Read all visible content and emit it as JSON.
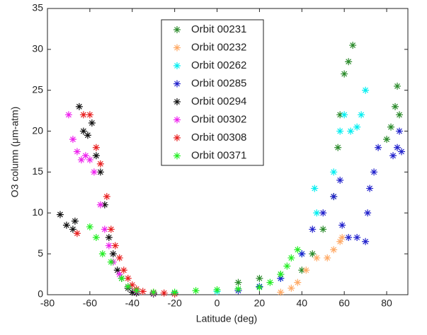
{
  "chart_data": {
    "type": "scatter",
    "x_label": "Latitude (deg)",
    "y_label": "O3 column (μm-atm)",
    "xlim": [
      -80,
      90
    ],
    "xticks": [
      -80,
      -60,
      -40,
      -20,
      0,
      20,
      40,
      60,
      80
    ],
    "ylim": [
      0,
      35
    ],
    "yticks": [
      0,
      5,
      10,
      15,
      20,
      25,
      30,
      35
    ],
    "legend": "top-center",
    "series": [
      {
        "name": "Orbit 00231",
        "color": "#2a8a2a",
        "x": [
          10,
          20,
          30,
          40,
          45,
          50,
          55,
          57,
          58,
          60,
          62,
          64,
          80,
          82,
          84,
          85,
          86
        ],
        "values": [
          1.5,
          2,
          2.5,
          3,
          5,
          8,
          12,
          18,
          22,
          27,
          28.5,
          30.5,
          19,
          20.5,
          23,
          25.5,
          22
        ]
      },
      {
        "name": "Orbit 00232",
        "color": "#ffaa66",
        "x": [
          30,
          35,
          38,
          42,
          47,
          52,
          55,
          58,
          59
        ],
        "values": [
          0.3,
          0.8,
          1.5,
          3,
          4.5,
          4.5,
          5.5,
          6.5,
          7
        ]
      },
      {
        "name": "Orbit 00262",
        "color": "#00eef0",
        "x": [
          -20,
          0,
          20,
          30,
          40,
          46,
          47,
          55,
          58,
          60,
          63,
          66,
          68,
          70
        ],
        "values": [
          0.2,
          0.4,
          1,
          2,
          5,
          13,
          10,
          15,
          20,
          22,
          20,
          20.5,
          22,
          25
        ]
      },
      {
        "name": "Orbit 00285",
        "color": "#2222cc",
        "x": [
          10,
          20,
          30,
          40,
          45,
          50,
          55,
          58,
          59,
          62,
          66,
          70,
          71,
          72,
          74,
          76,
          83,
          85,
          86,
          87
        ],
        "values": [
          0.5,
          1,
          2,
          5,
          8,
          10,
          12,
          14,
          8.5,
          7,
          7,
          6.5,
          10,
          13,
          15,
          18,
          17,
          18,
          20,
          17.5
        ]
      },
      {
        "name": "Orbit 00294",
        "color": "#111111",
        "x": [
          -74,
          -71,
          -68,
          -67,
          -65,
          -63,
          -61,
          -59,
          -57,
          -55,
          -53,
          -51,
          -49,
          -47,
          -45,
          -42,
          -40,
          -38,
          -30
        ],
        "values": [
          9.8,
          8.5,
          8,
          9,
          23,
          20,
          19.5,
          21,
          17,
          15,
          11,
          7,
          5,
          3,
          2,
          0.8,
          0.3,
          0.2,
          0.1
        ]
      },
      {
        "name": "Orbit 00302",
        "color": "#ee22ee",
        "x": [
          -70,
          -68,
          -66,
          -64,
          -62,
          -60,
          -58,
          -55,
          -53,
          -51,
          -49,
          -46,
          -42,
          -38,
          -30,
          -20
        ],
        "values": [
          22,
          19,
          17.5,
          16.5,
          17,
          16.5,
          15,
          11,
          8,
          6,
          4,
          2.5,
          1,
          0.4,
          0.2,
          0.1
        ]
      },
      {
        "name": "Orbit 00308",
        "color": "#e82020",
        "x": [
          -66,
          -63,
          -60,
          -57,
          -55,
          -52,
          -50,
          -48,
          -46,
          -44,
          -42,
          -40,
          -38,
          -35,
          -30,
          -25,
          -20
        ],
        "values": [
          7.5,
          22,
          22,
          18,
          16,
          12,
          8,
          6,
          4.5,
          3,
          2,
          1.2,
          0.7,
          0.4,
          0.3,
          0.2,
          0.1
        ]
      },
      {
        "name": "Orbit 00371",
        "color": "#22ee22",
        "x": [
          -60,
          -57,
          -54,
          -50,
          -45,
          -42,
          -38,
          -30,
          -20,
          -10,
          0,
          10,
          20,
          25,
          30,
          33,
          35,
          38
        ],
        "values": [
          8.3,
          7,
          5,
          4,
          2,
          1,
          0.5,
          0.3,
          0.3,
          0.5,
          0.6,
          0.7,
          0.9,
          1.5,
          2.5,
          3.5,
          4.5,
          5.5
        ]
      }
    ]
  }
}
